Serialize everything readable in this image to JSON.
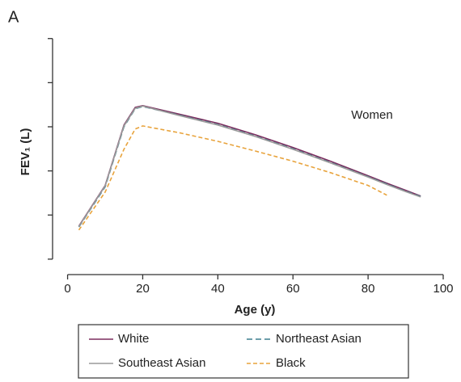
{
  "panel_label": "A",
  "chart_data": {
    "type": "line",
    "annotation": "Women",
    "xlabel": "Age (y)",
    "ylabel": "FEV₁ (L)",
    "x": [
      3,
      10,
      15,
      18,
      20,
      30,
      40,
      50,
      60,
      70,
      80,
      85,
      90,
      94
    ],
    "series": [
      {
        "name": "White",
        "color": "#7b2d5e",
        "dash": "none",
        "values": [
          0.75,
          1.67,
          3.04,
          3.44,
          3.48,
          3.28,
          3.08,
          2.82,
          2.53,
          2.22,
          1.89,
          1.72,
          1.56,
          1.43
        ]
      },
      {
        "name": "Northeast Asian",
        "color": "#3d7f8f",
        "dash": "7 4",
        "values": [
          0.73,
          1.64,
          3.0,
          3.41,
          3.46,
          3.26,
          3.05,
          2.79,
          2.5,
          2.19,
          1.87,
          1.7,
          1.54,
          1.42
        ]
      },
      {
        "name": "Southeast Asian",
        "color": "#9a9a9a",
        "dash": "none",
        "values": [
          0.74,
          1.66,
          3.02,
          3.42,
          3.47,
          3.25,
          3.04,
          2.78,
          2.49,
          2.18,
          1.86,
          1.69,
          1.53,
          1.41
        ]
      },
      {
        "name": "Black",
        "color": "#e8a33c",
        "dash": "5 3",
        "values": [
          0.66,
          1.52,
          2.49,
          2.95,
          3.02,
          2.86,
          2.67,
          2.45,
          2.22,
          1.96,
          1.67,
          1.45,
          null,
          null
        ]
      }
    ],
    "xlim": [
      -4,
      100
    ],
    "xticks": [
      0,
      20,
      40,
      60,
      80,
      100
    ],
    "ylim": [
      -0.35,
      5.05
    ],
    "yticks": [
      0,
      1,
      2,
      3,
      4,
      5
    ]
  }
}
